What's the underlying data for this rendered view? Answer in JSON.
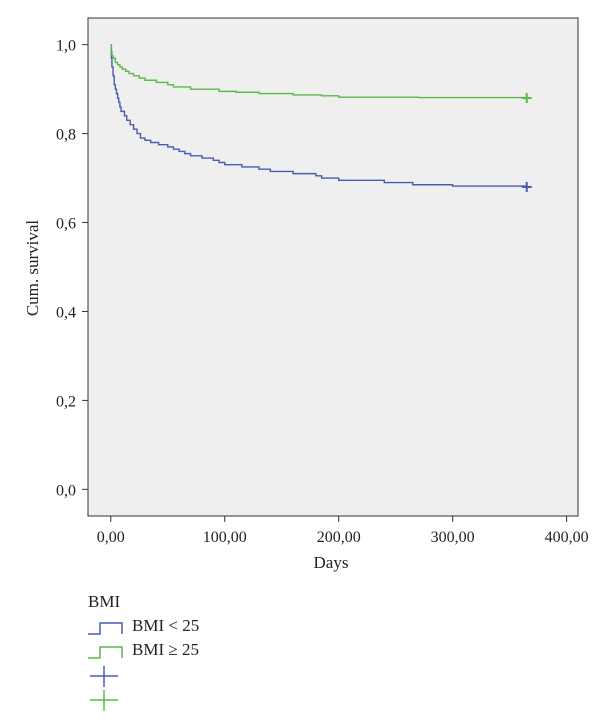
{
  "chart_data": {
    "type": "line",
    "subtype": "kaplan-meier survival curve",
    "xlabel": "Days",
    "ylabel": "Cum. survival",
    "xlim": [
      -20,
      410
    ],
    "ylim": [
      -0.06,
      1.06
    ],
    "x_ticks": [
      0,
      100,
      200,
      300,
      400
    ],
    "x_tick_labels": [
      "0,00",
      "100,00",
      "200,00",
      "300,00",
      "400,00"
    ],
    "y_ticks": [
      0,
      0.2,
      0.4,
      0.6,
      0.8,
      1.0
    ],
    "y_tick_labels": [
      "0,0",
      "0,2",
      "0,4",
      "0,6",
      "0,8",
      "1,0"
    ],
    "grid": false,
    "background": "#efefef",
    "legend": {
      "title": "BMI",
      "placement": "below",
      "entries": [
        {
          "label": "BMI < 25",
          "symbol": "step"
        },
        {
          "label": "BMI ≥ 25",
          "symbol": "step"
        },
        {
          "label": "",
          "symbol": "censor"
        },
        {
          "label": "",
          "symbol": "censor"
        }
      ]
    },
    "series": [
      {
        "name": "BMI < 25",
        "color": "#4a5bb0",
        "censored_at": [
          365,
          0.68
        ],
        "points": [
          [
            0,
            1.0
          ],
          [
            0.5,
            0.97
          ],
          [
            1,
            0.95
          ],
          [
            2,
            0.93
          ],
          [
            3,
            0.91
          ],
          [
            4,
            0.9
          ],
          [
            5,
            0.89
          ],
          [
            6,
            0.88
          ],
          [
            7,
            0.87
          ],
          [
            8,
            0.86
          ],
          [
            9,
            0.85
          ],
          [
            12,
            0.84
          ],
          [
            14,
            0.83
          ],
          [
            17,
            0.82
          ],
          [
            20,
            0.81
          ],
          [
            23,
            0.8
          ],
          [
            26,
            0.79
          ],
          [
            30,
            0.785
          ],
          [
            35,
            0.78
          ],
          [
            42,
            0.775
          ],
          [
            50,
            0.77
          ],
          [
            55,
            0.765
          ],
          [
            60,
            0.76
          ],
          [
            65,
            0.755
          ],
          [
            70,
            0.75
          ],
          [
            80,
            0.745
          ],
          [
            90,
            0.74
          ],
          [
            95,
            0.735
          ],
          [
            100,
            0.73
          ],
          [
            115,
            0.725
          ],
          [
            130,
            0.72
          ],
          [
            140,
            0.715
          ],
          [
            160,
            0.71
          ],
          [
            180,
            0.705
          ],
          [
            185,
            0.7
          ],
          [
            200,
            0.695
          ],
          [
            240,
            0.69
          ],
          [
            265,
            0.685
          ],
          [
            300,
            0.682
          ],
          [
            365,
            0.68
          ]
        ]
      },
      {
        "name": "BMI ≥ 25",
        "color": "#5cb84a",
        "censored_at": [
          365,
          0.88
        ],
        "points": [
          [
            0,
            1.0
          ],
          [
            0.5,
            0.985
          ],
          [
            1,
            0.975
          ],
          [
            2,
            0.97
          ],
          [
            4,
            0.96
          ],
          [
            6,
            0.955
          ],
          [
            8,
            0.95
          ],
          [
            10,
            0.945
          ],
          [
            13,
            0.94
          ],
          [
            16,
            0.935
          ],
          [
            20,
            0.93
          ],
          [
            25,
            0.925
          ],
          [
            30,
            0.92
          ],
          [
            40,
            0.915
          ],
          [
            50,
            0.91
          ],
          [
            55,
            0.905
          ],
          [
            70,
            0.9
          ],
          [
            95,
            0.895
          ],
          [
            110,
            0.893
          ],
          [
            130,
            0.89
          ],
          [
            160,
            0.887
          ],
          [
            185,
            0.885
          ],
          [
            200,
            0.882
          ],
          [
            270,
            0.881
          ],
          [
            365,
            0.88
          ]
        ]
      }
    ]
  }
}
